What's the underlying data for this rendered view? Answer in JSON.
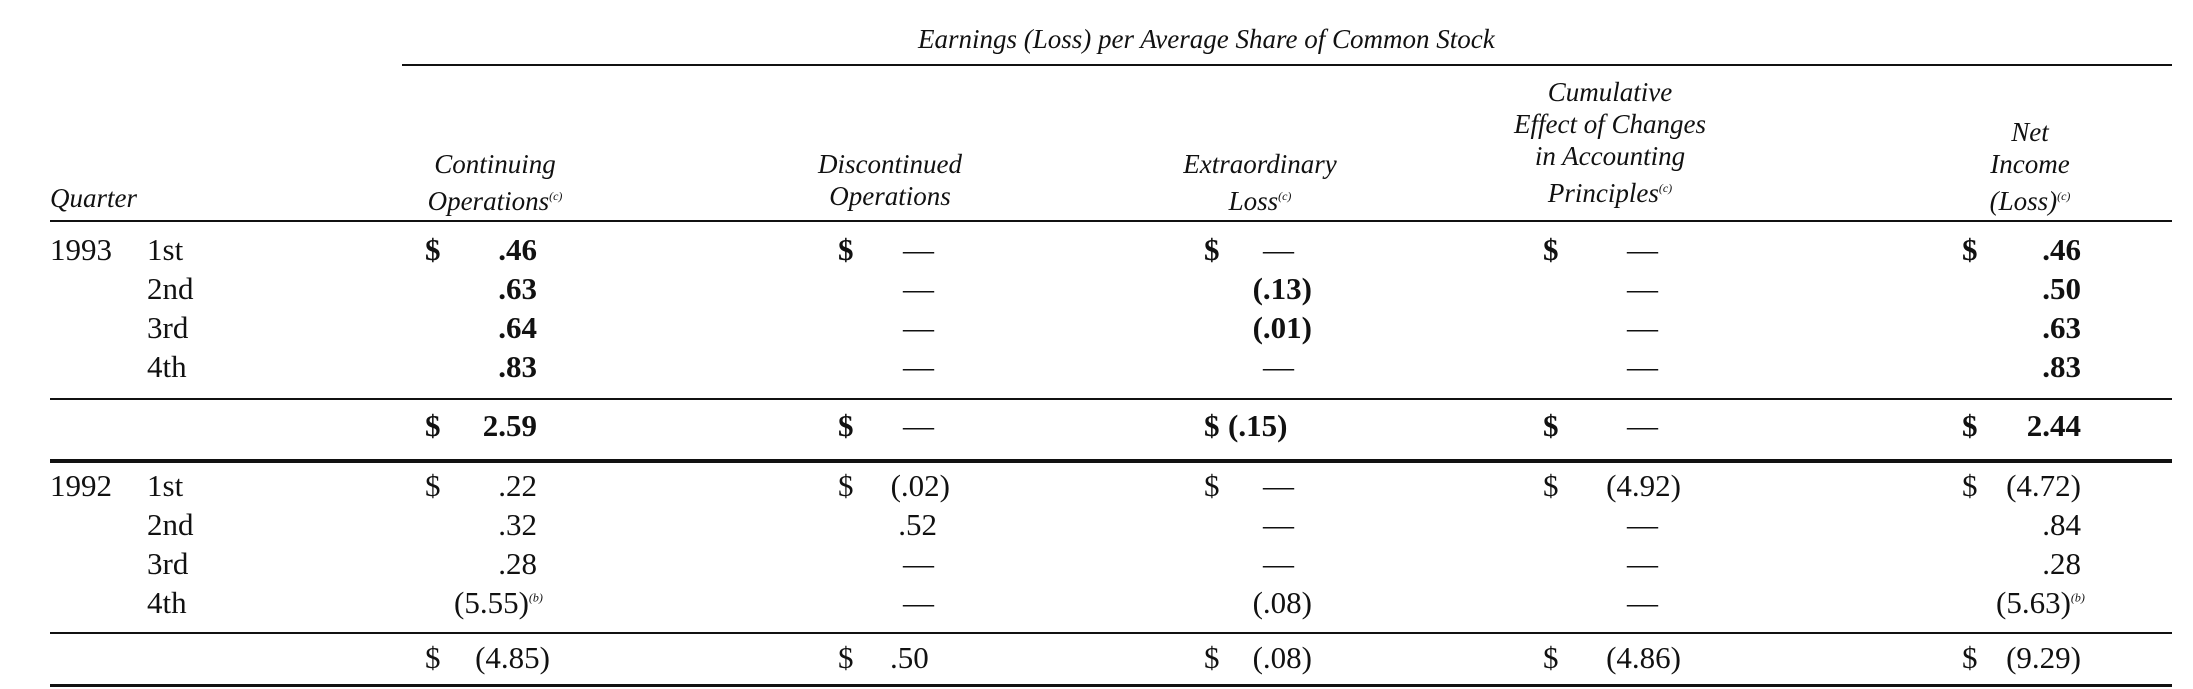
{
  "title": "Earnings (Loss) per Average Share of Common Stock",
  "headers": {
    "quarter": "Quarter",
    "continuing_line1": "Continuing",
    "continuing_line2": "Operations",
    "continuing_fn": "(c)",
    "discontinued_line1": "Discontinued",
    "discontinued_line2": "Operations",
    "extraordinary_line1": "Extraordinary",
    "extraordinary_line2": "Loss",
    "extraordinary_fn": "(c)",
    "cumulative_line1": "Cumulative",
    "cumulative_line2": "Effect of Changes",
    "cumulative_line3": "in Accounting",
    "cumulative_line4": "Principles",
    "cumulative_fn": "(c)",
    "net_line1": "Net",
    "net_line2": "Income",
    "net_line3": "(Loss)",
    "net_fn": "(c)"
  },
  "y1993": {
    "year": "1993",
    "rows": [
      {
        "q": "1st",
        "cont": ".46",
        "disc": "—",
        "extra": "—",
        "cum": "—",
        "net": ".46"
      },
      {
        "q": "2nd",
        "cont": ".63",
        "disc": "—",
        "extra": "(.13)",
        "cum": "—",
        "net": ".50"
      },
      {
        "q": "3rd",
        "cont": ".64",
        "disc": "—",
        "extra": "(.01)",
        "cum": "—",
        "net": ".63"
      },
      {
        "q": "4th",
        "cont": ".83",
        "disc": "—",
        "extra": "—",
        "cum": "—",
        "net": ".83"
      }
    ],
    "total": {
      "cont": "2.59",
      "disc": "—",
      "extra": "(.15)",
      "cum": "—",
      "net": "2.44"
    }
  },
  "y1992": {
    "year": "1992",
    "rows": [
      {
        "q": "1st",
        "cont": ".22",
        "disc": "(.02)",
        "extra": "—",
        "cum": "(4.92)",
        "net": "(4.72)"
      },
      {
        "q": "2nd",
        "cont": ".32",
        "disc": ".52",
        "extra": "—",
        "cum": "—",
        "net": ".84"
      },
      {
        "q": "3rd",
        "cont": ".28",
        "disc": "—",
        "extra": "—",
        "cum": "—",
        "net": ".28"
      },
      {
        "q": "4th",
        "cont": "(5.55)",
        "cont_fn": "(b)",
        "disc": "—",
        "extra": "(.08)",
        "cum": "—",
        "net": "(5.63)",
        "net_fn": "(b)"
      }
    ],
    "total": {
      "cont": "(4.85)",
      "disc": ".50",
      "extra": "(.08)",
      "cum": "(4.86)",
      "net": "(9.29)"
    }
  },
  "dollar": "$"
}
